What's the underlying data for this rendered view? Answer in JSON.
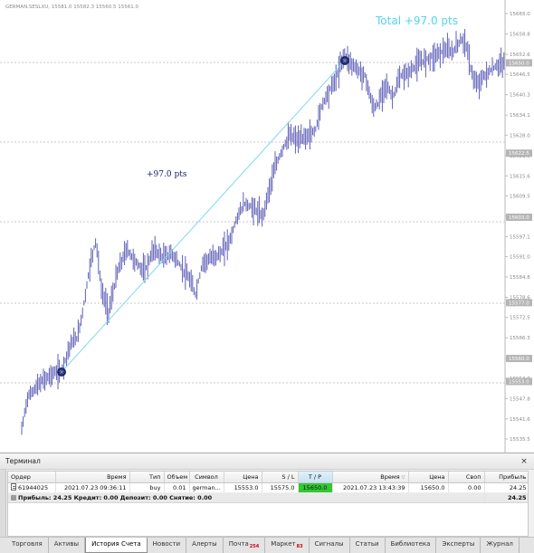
{
  "chart": {
    "symbol_line": "GERMAN.SESLXU, 15581.0 15582.3 15560.5 15561.0",
    "total_label": "Total +97.0 pts",
    "trade_label": "+97.0 pts",
    "y_labels": [
      "15665.0",
      "15658.8",
      "15652.6",
      "15646.5",
      "15640.3",
      "15634.1",
      "15628.0",
      "15621.8",
      "15615.6",
      "15609.5",
      "15603.3",
      "15597.1",
      "15591.0",
      "15584.8",
      "15578.6",
      "15572.5",
      "15566.3",
      "15560.1",
      "15554.0",
      "15547.8",
      "15541.6",
      "15535.5"
    ],
    "y_range": [
      15535.5,
      15665.0
    ],
    "price_box_labels": [
      "15650.0",
      "15622.5",
      "15603.0",
      "15577.0",
      "15560.0",
      "15553.0"
    ],
    "trade_line_color": "#7fd8f0",
    "candle_color": "#2a2aa0",
    "highlight_color": "#52d3f2"
  },
  "terminal": {
    "title": "Терминал",
    "close_label": "×",
    "columns": [
      "Ордер",
      "Время",
      "Тип",
      "Объем",
      "Символ",
      "Цена",
      "S / L",
      "T / P",
      "Время",
      "Цена",
      "Своп",
      "Прибыль"
    ],
    "rows": [
      [
        "61944025",
        "2021.07.23 09:36:11",
        "buy",
        "0.01",
        "german...",
        "15553.0",
        "15575.0",
        "15650.0",
        "2021.07.23 13:43:39",
        "15650.0",
        "0.00",
        "24.25"
      ]
    ],
    "summary_text": "Прибыль: 24.25  Кредит: 0.00  Депозит: 0.00  Снятие: 0.00",
    "summary_total": "24.25",
    "tp_highlight_color": "#32c832"
  },
  "tabs": [
    {
      "label": "Торговля",
      "badge": ""
    },
    {
      "label": "Активы",
      "badge": ""
    },
    {
      "label": "История Счета",
      "badge": ""
    },
    {
      "label": "Новости",
      "badge": ""
    },
    {
      "label": "Алерты",
      "badge": ""
    },
    {
      "label": "Почта",
      "badge": "254"
    },
    {
      "label": "Маркет",
      "badge": "83"
    },
    {
      "label": "Сигналы",
      "badge": ""
    },
    {
      "label": "Статьи",
      "badge": ""
    },
    {
      "label": "Библиотека",
      "badge": ""
    },
    {
      "label": "Эксперты",
      "badge": ""
    },
    {
      "label": "Журнал",
      "badge": ""
    }
  ],
  "active_tab": "История Счета",
  "icons": {
    "close": "close-icon",
    "document": "document-icon",
    "sort": "sort-icon",
    "entry_marker": "trade-entry-icon",
    "exit_marker": "trade-exit-icon"
  }
}
